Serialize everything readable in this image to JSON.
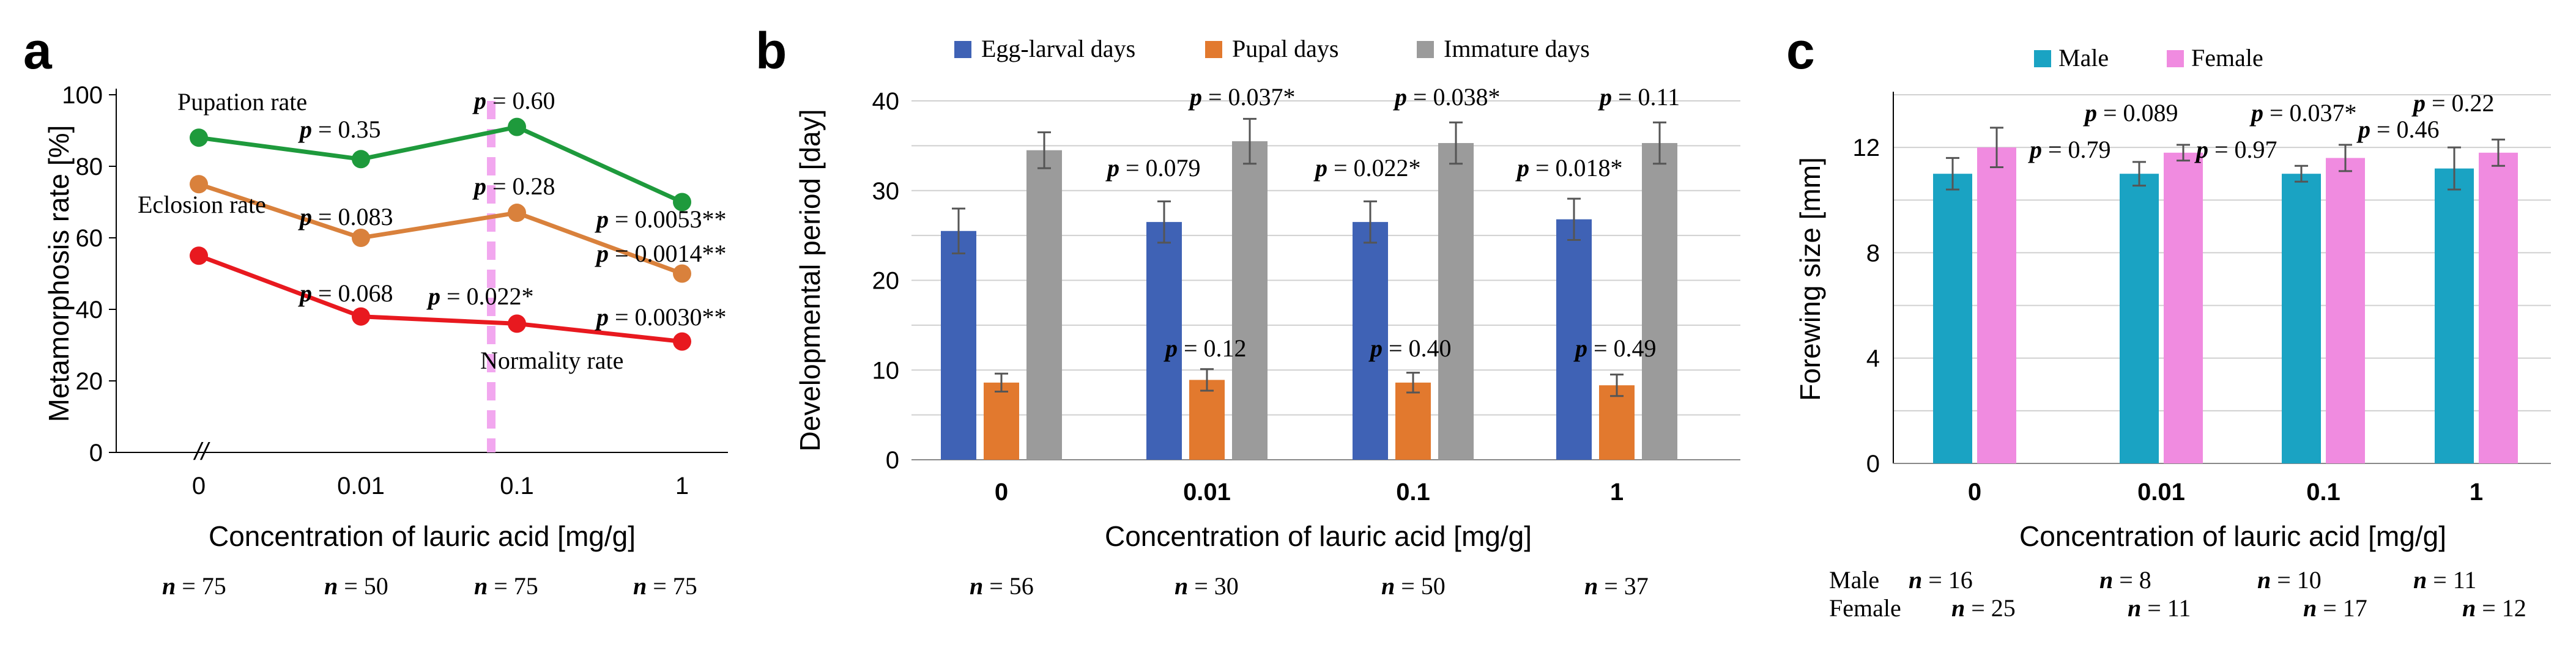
{
  "chart_data": [
    {
      "panel": "a",
      "type": "line",
      "xlabel": "Concentration of lauric acid [mg/g]",
      "ylabel": "Metamorphosis rate [%]",
      "categories": [
        "0",
        "0.01",
        "0.1",
        "1"
      ],
      "yticks": [
        "0",
        "20",
        "40",
        "60",
        "80",
        "100"
      ],
      "ylim": [
        0,
        100
      ],
      "axis_break": "//",
      "series": [
        {
          "name": "Pupation rate",
          "color": "#1e9a3c",
          "values": [
            88,
            82,
            91,
            70
          ],
          "pvalues": [
            "",
            "= 0.35",
            "= 0.60",
            "= 0.0053**"
          ]
        },
        {
          "name": "Eclosion rate",
          "color": "#d9813c",
          "values": [
            75,
            60,
            67,
            50
          ],
          "pvalues": [
            "",
            "= 0.083",
            "= 0.28",
            "= 0.0014**"
          ]
        },
        {
          "name": "Normality rate",
          "color": "#e8191f",
          "values": [
            55,
            38,
            36,
            31
          ],
          "pvalues": [
            "",
            "= 0.068",
            "= 0.022*",
            "= 0.0030**"
          ]
        }
      ],
      "p_symbol": "p",
      "n_symbol": "n",
      "n_values": [
        "= 75",
        "= 50",
        "= 75",
        "= 75"
      ]
    },
    {
      "panel": "b",
      "type": "bar",
      "xlabel": "Concentration of lauric acid [mg/g]",
      "ylabel": "Developmental period [day]",
      "categories": [
        "0",
        "0.01",
        "0.1",
        "1"
      ],
      "yticks": [
        "0",
        "10",
        "20",
        "30",
        "40"
      ],
      "ylim": [
        0,
        40
      ],
      "series": [
        {
          "name": "Egg-larval days",
          "color": "#3f62b5",
          "values": [
            25.5,
            26.5,
            26.5,
            26.8
          ],
          "errors": [
            2.5,
            2.3,
            2.3,
            2.3
          ],
          "pvalues": [
            "",
            "= 0.079",
            "= 0.022*",
            "= 0.018*"
          ]
        },
        {
          "name": "Pupal days",
          "color": "#e2792e",
          "values": [
            8.6,
            8.9,
            8.6,
            8.3
          ],
          "errors": [
            1.0,
            1.2,
            1.1,
            1.2
          ],
          "pvalues": [
            "",
            "= 0.12",
            "= 0.40",
            "= 0.49"
          ]
        },
        {
          "name": "Immature days",
          "color": "#9b9b9b",
          "values": [
            34.5,
            35.5,
            35.3,
            35.3
          ],
          "errors": [
            2.0,
            2.5,
            2.3,
            2.3
          ],
          "pvalues": [
            "",
            "= 0.037*",
            "= 0.038*",
            "= 0.11"
          ]
        }
      ],
      "p_symbol": "p",
      "n_symbol": "n",
      "n_values": [
        "= 56",
        "= 30",
        "= 50",
        "= 37"
      ]
    },
    {
      "panel": "c",
      "type": "bar",
      "xlabel": "Concentration of lauric acid [mg/g]",
      "ylabel": "Forewing size [mm]",
      "categories": [
        "0",
        "0.01",
        "0.1",
        "1"
      ],
      "yticks": [
        "0",
        "4",
        "8",
        "12"
      ],
      "ylim": [
        0,
        14
      ],
      "series": [
        {
          "name": "Male",
          "color": "#1aa3c3",
          "values": [
            11.0,
            11.0,
            11.0,
            11.2
          ],
          "errors": [
            0.6,
            0.45,
            0.3,
            0.8
          ],
          "pvalues": [
            "",
            "= 0.79",
            "= 0.97",
            "= 0.46"
          ]
        },
        {
          "name": "Female",
          "color": "#f08be0",
          "values": [
            12.0,
            11.8,
            11.6,
            11.8
          ],
          "errors": [
            0.75,
            0.3,
            0.5,
            0.5
          ],
          "pvalues": [
            "",
            "= 0.089",
            "= 0.037*",
            "= 0.22"
          ]
        }
      ],
      "p_symbol": "p",
      "n_symbol": "n",
      "n_rows": [
        {
          "label": "Male",
          "values": [
            "= 16",
            "= 8",
            "= 10",
            "= 11"
          ]
        },
        {
          "label": "Female",
          "values": [
            "= 25",
            "= 11",
            "= 17",
            "= 12"
          ]
        }
      ]
    }
  ]
}
